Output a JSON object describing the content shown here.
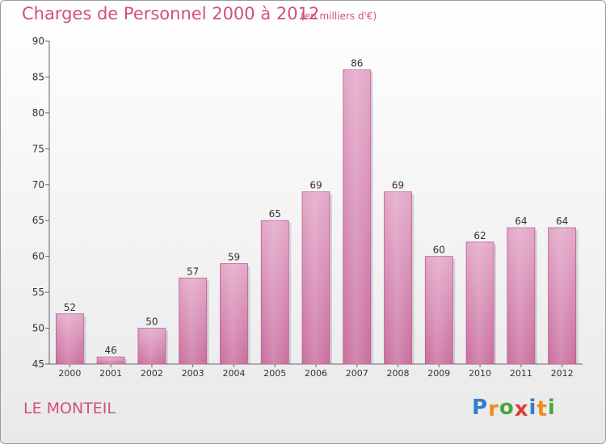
{
  "chart_data": {
    "type": "bar",
    "title": "Charges de Personnel 2000 à 2012",
    "subtitle": "(en milliers d'€)",
    "categories": [
      "2000",
      "2001",
      "2002",
      "2003",
      "2004",
      "2005",
      "2006",
      "2007",
      "2008",
      "2009",
      "2010",
      "2011",
      "2012"
    ],
    "values": [
      52,
      46,
      50,
      57,
      59,
      65,
      69,
      86,
      69,
      60,
      62,
      64,
      64
    ],
    "data_labels": [
      "52",
      "46",
      "50",
      "57",
      "59",
      "65",
      "69",
      "86",
      "69",
      "60",
      "62",
      "64",
      "64"
    ],
    "ylim": [
      45,
      90
    ],
    "yticks": [
      45,
      50,
      55,
      60,
      65,
      70,
      75,
      80,
      85,
      90
    ],
    "xlabel": "",
    "ylabel": "",
    "grid": false,
    "bar_color": "#c96e9e",
    "bar_color_light": "#e3a7c8",
    "label_color": "#333333"
  },
  "footer": {
    "place_name": "LE MONTEIL",
    "logo": {
      "text": "Proxiti",
      "letters": [
        {
          "ch": "P",
          "color": "#2f7fc8"
        },
        {
          "ch": "r",
          "color": "#f28a1b"
        },
        {
          "ch": "o",
          "color": "#4aa63a"
        },
        {
          "ch": "x",
          "color": "#e03a3a"
        },
        {
          "ch": "i",
          "color": "#2f7fc8"
        },
        {
          "ch": "t",
          "color": "#f28a1b"
        },
        {
          "ch": "i",
          "color": "#4aa63a"
        }
      ]
    }
  },
  "colors": {
    "title": "#d24f7d",
    "axis": "#555555"
  }
}
